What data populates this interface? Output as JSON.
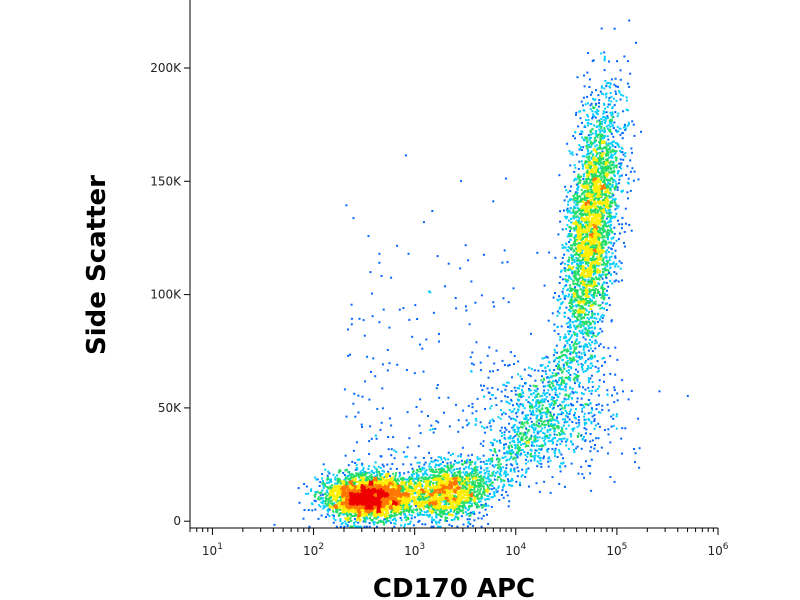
{
  "chart_data": {
    "type": "scatter",
    "subtype": "flow-cytometry density dot plot",
    "xlabel": "CD170 APC",
    "ylabel": "Side Scatter",
    "x_scale": "log",
    "x_range": [
      6,
      1000000
    ],
    "x_ticks": [
      {
        "base": "10",
        "exp": "1",
        "value": 10
      },
      {
        "base": "10",
        "exp": "2",
        "value": 100
      },
      {
        "base": "10",
        "exp": "3",
        "value": 1000
      },
      {
        "base": "10",
        "exp": "4",
        "value": 10000
      },
      {
        "base": "10",
        "exp": "5",
        "value": 100000
      },
      {
        "base": "10",
        "exp": "6",
        "value": 1000000
      }
    ],
    "y_scale": "linear",
    "y_range": [
      -3000,
      230000
    ],
    "y_ticks": [
      {
        "label": "0",
        "value": 0
      },
      {
        "label": "50K",
        "value": 50000
      },
      {
        "label": "100K",
        "value": 100000
      },
      {
        "label": "150K",
        "value": 150000
      },
      {
        "label": "200K",
        "value": 200000
      }
    ],
    "grid": false,
    "legend": "none",
    "density_colormap": [
      "#0000cc",
      "#0066ff",
      "#00ccff",
      "#22dd66",
      "#ffee00",
      "#ff7700",
      "#ee0000"
    ],
    "populations": [
      {
        "center_x": 350,
        "center_y": 11000,
        "spread_log_x": 0.22,
        "spread_y": 5000,
        "density": "high"
      },
      {
        "center_x": 2000,
        "center_y": 14000,
        "spread_log_x": 0.2,
        "spread_y": 6000,
        "density": "medium"
      },
      {
        "center_x": 55000,
        "center_y": 130000,
        "spread_log_x": 0.12,
        "spread_y": 28000,
        "density": "high"
      },
      {
        "center_x": 20000,
        "center_y": 45000,
        "spread_log_x": 0.35,
        "spread_y": 12000,
        "density": "low"
      }
    ]
  }
}
